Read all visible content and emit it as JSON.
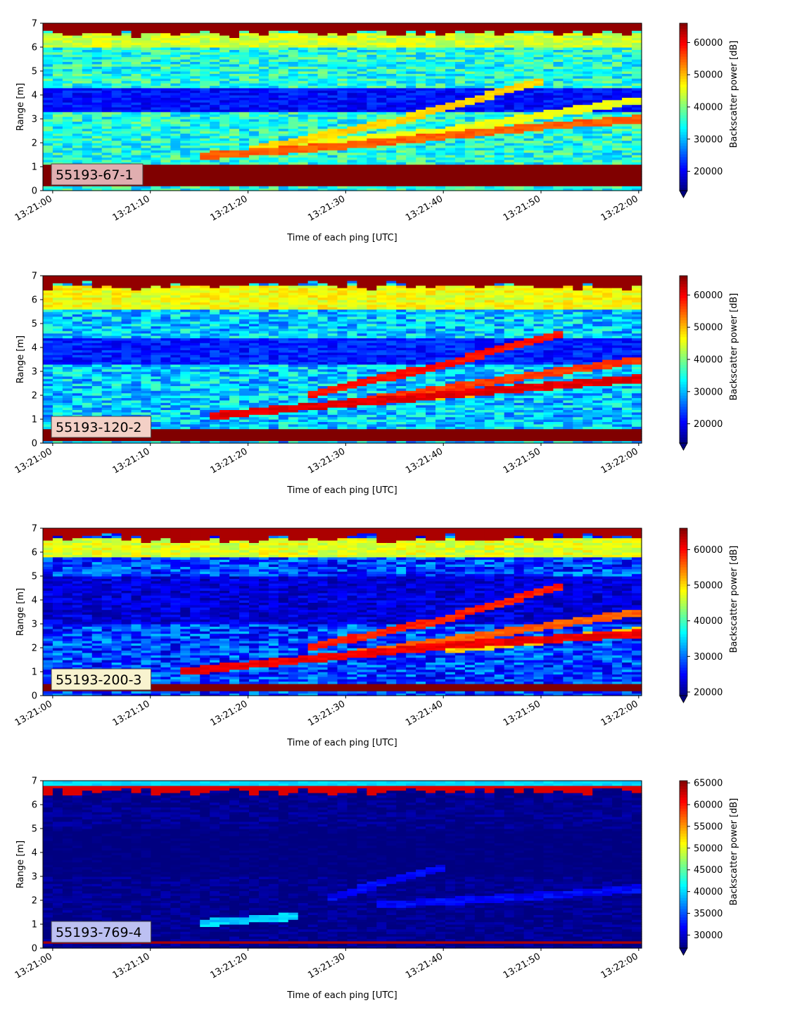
{
  "chart_data": [
    {
      "type": "heatmap",
      "badge": "55193-67-1",
      "badge_color": "#e0aeb0",
      "xlabel": "Time of each ping [UTC]",
      "ylabel": "Range [m]",
      "colorbar_label": "Backscatter power [dB]",
      "xlim": [
        -1,
        60.3
      ],
      "ylim": [
        0,
        7
      ],
      "x_ticks": [
        "13:21:00",
        "13:21:10",
        "13:21:20",
        "13:21:30",
        "13:21:40",
        "13:21:50",
        "13:22:00"
      ],
      "y_ticks": [
        "0",
        "1",
        "2",
        "3",
        "4",
        "5",
        "6",
        "7"
      ],
      "clim": [
        14000,
        66000
      ],
      "colorbar_ticks": [
        20000,
        30000,
        40000,
        50000,
        60000
      ],
      "background": {
        "base": 35000,
        "noise": 6000,
        "bottom_band": [
          0.2,
          1.1,
          66000
        ],
        "top_band": [
          6.6,
          7.0,
          65000
        ],
        "dark_band": [
          3.3,
          4.3,
          21000
        ],
        "upper_bright": [
          6.0,
          6.6,
          44000
        ]
      },
      "tracks": [
        {
          "t": [
            15,
            30,
            50,
            60
          ],
          "r": [
            1.45,
            1.9,
            2.7,
            3.0
          ],
          "power": 56000
        },
        {
          "t": [
            20,
            35,
            50
          ],
          "r": [
            1.7,
            2.9,
            4.6
          ],
          "power": 50000
        },
        {
          "t": [
            25,
            40,
            60
          ],
          "r": [
            1.9,
            2.5,
            3.8
          ],
          "power": 47000
        }
      ]
    },
    {
      "type": "heatmap",
      "badge": "55193-120-2",
      "badge_color": "#f3d0c6",
      "xlabel": "Time of each ping [UTC]",
      "ylabel": "Range [m]",
      "colorbar_label": "Backscatter power [dB]",
      "xlim": [
        -1,
        60.3
      ],
      "ylim": [
        0,
        7
      ],
      "x_ticks": [
        "13:21:00",
        "13:21:10",
        "13:21:20",
        "13:21:30",
        "13:21:40",
        "13:21:50",
        "13:22:00"
      ],
      "y_ticks": [
        "0",
        "1",
        "2",
        "3",
        "4",
        "5",
        "6",
        "7"
      ],
      "clim": [
        14000,
        66000
      ],
      "colorbar_ticks": [
        20000,
        30000,
        40000,
        50000,
        60000
      ],
      "background": {
        "base": 31000,
        "noise": 6500,
        "bottom_band": [
          0.1,
          0.55,
          66000
        ],
        "top_band": [
          6.6,
          7.0,
          65000
        ],
        "dark_band": [
          3.3,
          4.4,
          22000
        ],
        "upper_bright": [
          5.6,
          6.6,
          46000
        ]
      },
      "tracks": [
        {
          "t": [
            16,
            28,
            45,
            60
          ],
          "r": [
            1.15,
            1.6,
            2.2,
            2.7
          ],
          "power": 62000
        },
        {
          "t": [
            26,
            40,
            52
          ],
          "r": [
            2.0,
            3.3,
            4.6
          ],
          "power": 60000
        },
        {
          "t": [
            32,
            45,
            60
          ],
          "r": [
            1.8,
            2.6,
            3.5
          ],
          "power": 58000
        },
        {
          "t": [
            38,
            50,
            60
          ],
          "r": [
            1.9,
            2.4,
            2.7
          ],
          "power": 52000
        }
      ]
    },
    {
      "type": "heatmap",
      "badge": "55193-200-3",
      "badge_color": "#f8f3cf",
      "xlabel": "Time of each ping [UTC]",
      "ylabel": "Range [m]",
      "colorbar_label": "Backscatter power [dB]",
      "xlim": [
        -1,
        60.3
      ],
      "ylim": [
        0,
        7
      ],
      "x_ticks": [
        "13:21:00",
        "13:21:10",
        "13:21:20",
        "13:21:30",
        "13:21:40",
        "13:21:50",
        "13:22:00"
      ],
      "y_ticks": [
        "0",
        "1",
        "2",
        "3",
        "4",
        "5",
        "6",
        "7"
      ],
      "clim": [
        19000,
        66000
      ],
      "colorbar_ticks": [
        20000,
        30000,
        40000,
        50000,
        60000
      ],
      "background": {
        "base": 28000,
        "noise": 6000,
        "bottom_band": [
          0.2,
          0.45,
          66000
        ],
        "top_band": [
          6.6,
          7.0,
          64000
        ],
        "dark_band": [
          3.0,
          5.0,
          23000
        ],
        "upper_bright": [
          5.8,
          6.6,
          47000
        ]
      },
      "tracks": [
        {
          "t": [
            13,
            25,
            40,
            60
          ],
          "r": [
            1.0,
            1.5,
            2.1,
            2.6
          ],
          "power": 62000
        },
        {
          "t": [
            26,
            40,
            52
          ],
          "r": [
            2.0,
            3.2,
            4.6
          ],
          "power": 60000
        },
        {
          "t": [
            30,
            45,
            60
          ],
          "r": [
            1.7,
            2.6,
            3.5
          ],
          "power": 57000
        },
        {
          "t": [
            40,
            52,
            60
          ],
          "r": [
            1.9,
            2.4,
            2.7
          ],
          "power": 52000
        }
      ]
    },
    {
      "type": "heatmap",
      "badge": "55193-769-4",
      "badge_color": "#bcc0f2",
      "xlabel": "Time of each ping [UTC]",
      "ylabel": "Range [m]",
      "colorbar_label": "Backscatter power [dB]",
      "xlim": [
        -1,
        60.3
      ],
      "ylim": [
        0,
        7
      ],
      "x_ticks": [
        "13:21:00",
        "13:21:10",
        "13:21:20",
        "13:21:30",
        "13:21:40",
        "13:21:50",
        "13:22:00"
      ],
      "y_ticks": [
        "0",
        "1",
        "2",
        "3",
        "4",
        "5",
        "6",
        "7"
      ],
      "clim": [
        27000,
        65500
      ],
      "colorbar_ticks": [
        30000,
        35000,
        40000,
        45000,
        50000,
        55000,
        60000,
        65000
      ],
      "background": {
        "base": 27500,
        "noise": 1500,
        "bottom_band": [
          0.2,
          0.35,
          64000
        ],
        "top_band": [
          6.55,
          6.8,
          62000
        ],
        "dark_band": [
          3.0,
          5.0,
          27000
        ],
        "upper_bright": [
          6.8,
          7.0,
          40000
        ]
      },
      "tracks": [
        {
          "t": [
            15,
            25
          ],
          "r": [
            1.05,
            1.35
          ],
          "power": 41000
        },
        {
          "t": [
            28,
            40
          ],
          "r": [
            2.1,
            3.4
          ],
          "power": 33000
        },
        {
          "t": [
            33,
            50,
            60
          ],
          "r": [
            1.8,
            2.2,
            2.5
          ],
          "power": 33000
        }
      ]
    }
  ]
}
